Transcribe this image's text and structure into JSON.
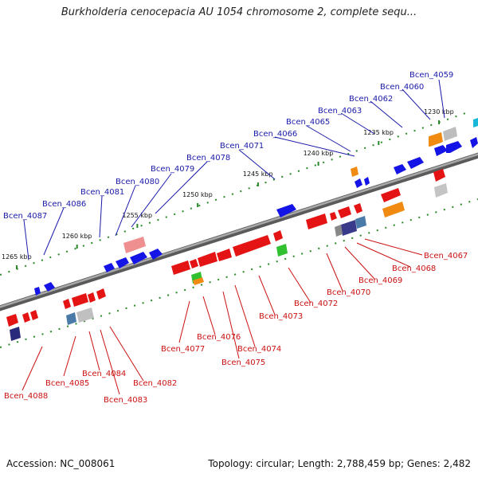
{
  "title": "Burkholderia cenocepacia AU 1054 chromosome 2, complete sequ...",
  "footer": {
    "accession": "Accession: NC_008061",
    "topology": "Topology: circular; Length: 2,788,459 bp; Genes: 2,482"
  },
  "colors": {
    "backbone": "#858585",
    "forward_gene": "#1414e6",
    "reverse_gene": "#e41414",
    "tick": "#2a8a2a",
    "orange_gene": "#f08a10",
    "green_gene": "#30c030",
    "cyan_gene": "#18b8d8"
  },
  "ticks": [
    {
      "label": "1230 kbp",
      "pos": 1230
    },
    {
      "label": "1235 kbp",
      "pos": 1235
    },
    {
      "label": "1240 kbp",
      "pos": 1240
    },
    {
      "label": "1245 kbp",
      "pos": 1245
    },
    {
      "label": "1250 kbp",
      "pos": 1250
    },
    {
      "label": "1255 kbp",
      "pos": 1255
    },
    {
      "label": "1260 kbp",
      "pos": 1260
    },
    {
      "label": "1265 kbp",
      "pos": 1265
    }
  ],
  "top_labels": [
    "Bcen_4059",
    "Bcen_4060",
    "Bcen_4062",
    "Bcen_4063",
    "Bcen_4065",
    "Bcen_4066",
    "Bcen_4071",
    "Bcen_4078",
    "Bcen_4079",
    "Bcen_4080",
    "Bcen_4081",
    "Bcen_4086",
    "Bcen_4087"
  ],
  "bottom_labels": [
    "Bcen_4067",
    "Bcen_4068",
    "Bcen_4069",
    "Bcen_4070",
    "Bcen_4072",
    "Bcen_4073",
    "Bcen_4074",
    "Bcen_4075",
    "Bcen_4076",
    "Bcen_4077",
    "Bcen_4082",
    "Bcen_4083",
    "Bcen_4084",
    "Bcen_4085",
    "Bcen_4088"
  ]
}
